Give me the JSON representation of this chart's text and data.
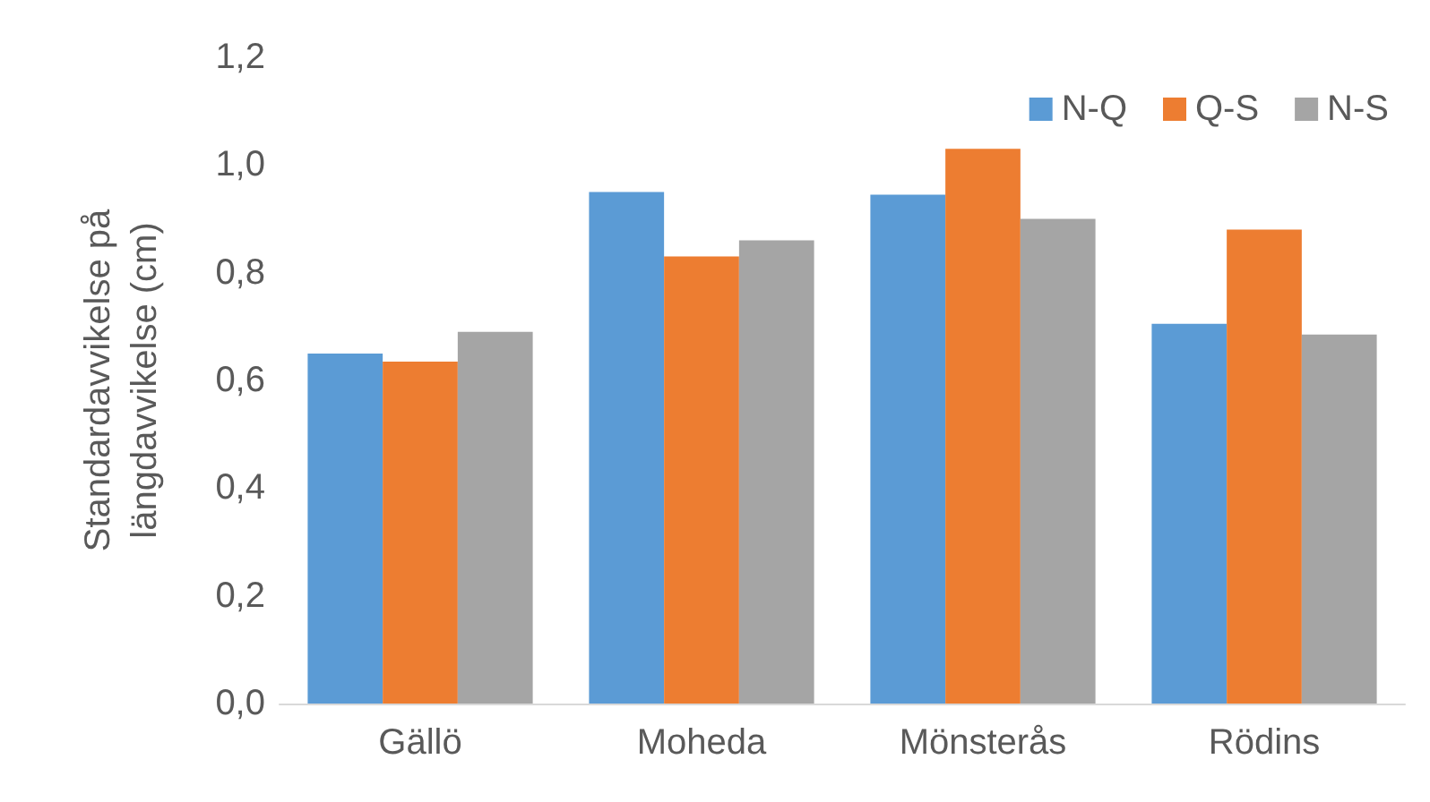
{
  "chart_data": {
    "type": "bar",
    "ylabel": "Standardavvikelse på\nlängdavvikelse (cm)",
    "categories": [
      "Gällö",
      "Moheda",
      "Mönsterås",
      "Rödins"
    ],
    "series": [
      {
        "name": "N-Q",
        "color": "#5b9bd5",
        "values": [
          0.65,
          0.95,
          0.945,
          0.705
        ]
      },
      {
        "name": "Q-S",
        "color": "#ed7d31",
        "values": [
          0.635,
          0.83,
          1.03,
          0.88
        ]
      },
      {
        "name": "N-S",
        "color": "#a5a5a5",
        "values": [
          0.69,
          0.86,
          0.9,
          0.685
        ]
      }
    ],
    "ylim": [
      0,
      1.2
    ],
    "yticks": [
      {
        "value": 0,
        "label": "0,0"
      },
      {
        "value": 0.2,
        "label": "0,2"
      },
      {
        "value": 0.4,
        "label": "0,4"
      },
      {
        "value": 0.6,
        "label": "0,6"
      },
      {
        "value": 0.8,
        "label": "0,8"
      },
      {
        "value": 1,
        "label": "1,0"
      },
      {
        "value": 1.2,
        "label": "1,2"
      }
    ],
    "grid": false,
    "legend": "top right"
  }
}
